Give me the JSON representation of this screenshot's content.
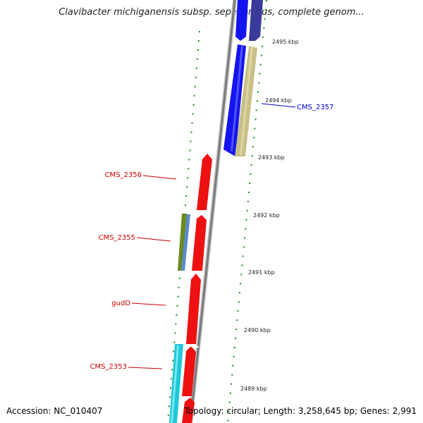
{
  "title": "Clavibacter michiganensis subsp. sepedonicus, complete genom...",
  "accession": "Accession: NC_010407",
  "topology": "Topology: circular; Length: 3,258,645 bp; Genes: 2,991",
  "ticks": [
    "2495 kbp",
    "2494 kbp",
    "2493 kbp",
    "2492 kbp",
    "2491 kbp",
    "2490 kbp",
    "2489 kbp"
  ],
  "gene_labels": [
    "CMS_2357",
    "CMS_2356",
    "CMS_2355",
    "gudD",
    "CMS_2353"
  ],
  "colors": {
    "cds_red": "#ee1111",
    "cds_blue": "#1414f0",
    "dark_blue": "#3a3a9a",
    "khaki": "#c8c088",
    "olive": "#6a8a20",
    "steel": "#5a8acc",
    "cyan": "#1ec8d8",
    "tick_green": "#1a8a1a",
    "backbone": "#8a8a8a",
    "label_red": "#cc0000",
    "label_blue": "#0000cc"
  }
}
